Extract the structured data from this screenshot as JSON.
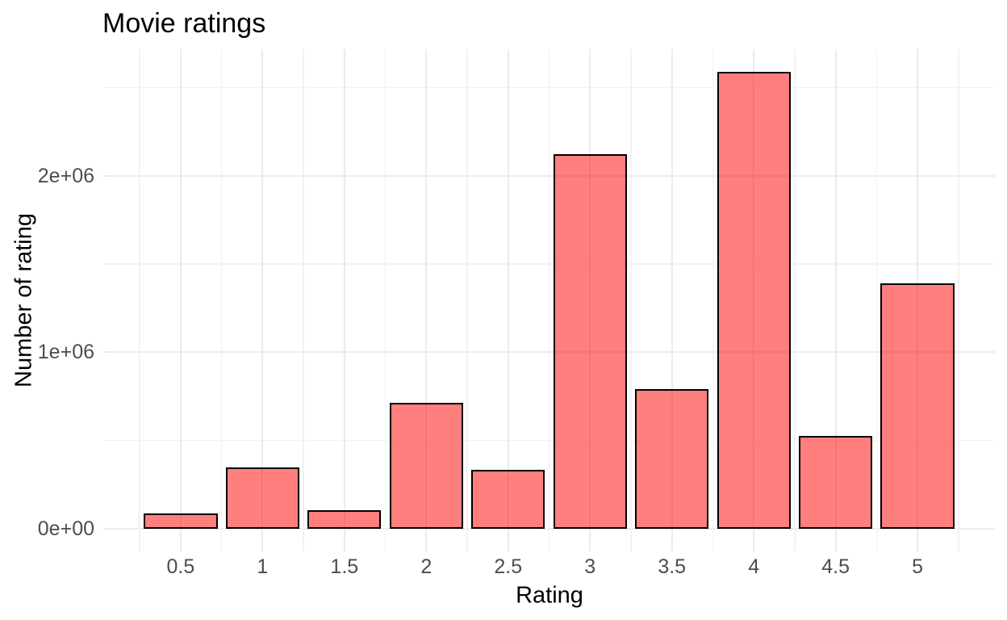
{
  "chart_data": {
    "type": "bar",
    "title": "Movie ratings",
    "xlabel": "Rating",
    "ylabel": "Number of rating",
    "categories": [
      "0.5",
      "1",
      "1.5",
      "2",
      "2.5",
      "3",
      "3.5",
      "4",
      "4.5",
      "5"
    ],
    "values": [
      85000,
      346000,
      106000,
      711000,
      333000,
      2121000,
      792000,
      2588000,
      527000,
      1390000
    ],
    "y_ticks": [
      {
        "value": 0,
        "label": "0e+00"
      },
      {
        "value": 1000000,
        "label": "1e+06"
      },
      {
        "value": 2000000,
        "label": "2e+06"
      }
    ],
    "y_minor_ticks": [
      500000,
      1500000,
      2500000
    ],
    "x_minor_ticks": [
      0.25,
      0.75,
      1.25,
      1.75,
      2.25,
      2.75,
      3.25,
      3.75,
      4.25,
      4.75,
      5.25
    ],
    "bin_width": 0.5,
    "bar_width_units": 0.45,
    "ylim": [
      -129400,
      2717400
    ],
    "xlim": [
      0.0275,
      5.4725
    ],
    "grid": "on",
    "legend": "none"
  },
  "colors": {
    "background": "#FFFFFF",
    "bar_fill": "rgba(255,0,0,0.5)",
    "bar_border": "#000000",
    "grid_major": "#EBEBEB",
    "grid_minor": "#F2F2F2",
    "axis_text": "#4D4D4D",
    "title_text": "#000000"
  }
}
